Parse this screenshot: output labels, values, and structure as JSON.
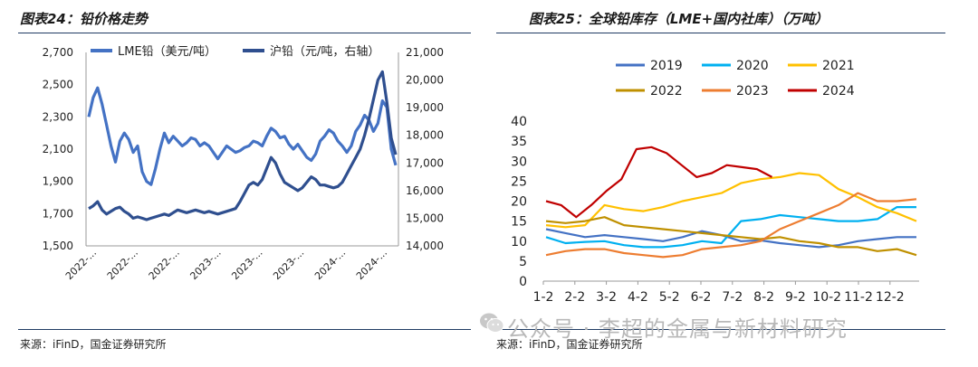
{
  "left_panel": {
    "title": "图表24：铅价格走势",
    "source": "来源：iFinD，国金证券研究所"
  },
  "right_panel": {
    "title": "图表25：全球铅库存（LME+国内社库）（万吨）",
    "source": "来源：iFinD，国金证券研究所"
  },
  "watermark": {
    "text": "公众号 · 李超的金属与新材料研究",
    "icon": "wechat-icon"
  },
  "chart_data": [
    {
      "type": "line",
      "title": "铅价格走势",
      "x_tick_labels": [
        "2022-...",
        "2022-...",
        "2022-...",
        "2023-...",
        "2023-...",
        "2023-...",
        "2024-...",
        "2024-..."
      ],
      "y_left_ticks": [
        "2,700",
        "2,500",
        "2,300",
        "2,100",
        "1,900",
        "1,700",
        "1,500"
      ],
      "y_right_ticks": [
        "21,000",
        "20,000",
        "19,000",
        "18,000",
        "17,000",
        "16,000",
        "15,000",
        "14,000"
      ],
      "ylim_left": [
        1500,
        2700
      ],
      "ylim_right": [
        14000,
        21000
      ],
      "series": [
        {
          "name": "LME铅（美元/吨）",
          "axis": "left",
          "color": "#4472c4",
          "values": [
            2300,
            2420,
            2480,
            2380,
            2250,
            2120,
            2020,
            2150,
            2200,
            2160,
            2080,
            2120,
            1960,
            1900,
            1880,
            1980,
            2100,
            2200,
            2140,
            2180,
            2150,
            2120,
            2140,
            2170,
            2160,
            2120,
            2140,
            2120,
            2080,
            2040,
            2080,
            2120,
            2100,
            2080,
            2090,
            2110,
            2120,
            2150,
            2140,
            2120,
            2180,
            2230,
            2210,
            2170,
            2180,
            2130,
            2100,
            2130,
            2090,
            2050,
            2030,
            2070,
            2150,
            2180,
            2220,
            2200,
            2150,
            2120,
            2080,
            2120,
            2210,
            2250,
            2310,
            2280,
            2210,
            2260,
            2400,
            2360,
            2100,
            2000
          ]
        },
        {
          "name": "沪铅（元/吨，右轴）",
          "axis": "right",
          "color": "#2f4f8f",
          "values": [
            15350,
            15450,
            15600,
            15300,
            15150,
            15250,
            15350,
            15400,
            15250,
            15150,
            15000,
            15050,
            15000,
            14950,
            15000,
            15050,
            15100,
            15150,
            15100,
            15200,
            15300,
            15250,
            15200,
            15250,
            15300,
            15250,
            15200,
            15250,
            15200,
            15150,
            15200,
            15250,
            15300,
            15350,
            15600,
            15900,
            16200,
            16300,
            16200,
            16400,
            16800,
            17200,
            17000,
            16600,
            16300,
            16200,
            16100,
            16000,
            16100,
            16300,
            16500,
            16400,
            16200,
            16200,
            16150,
            16100,
            16150,
            16300,
            16600,
            16900,
            17200,
            17500,
            18000,
            18600,
            19300,
            20000,
            20300,
            19200,
            17900,
            17300
          ]
        }
      ]
    },
    {
      "type": "line",
      "title": "全球铅库存（LME+国内社库）（万吨）",
      "x_tick_labels": [
        "1-2",
        "2-2",
        "3-2",
        "4-2",
        "5-2",
        "6-2",
        "7-2",
        "8-2",
        "9-2",
        "10-2",
        "11-2",
        "12-2"
      ],
      "y_ticks": [
        "40",
        "35",
        "30",
        "25",
        "20",
        "15",
        "10",
        "5",
        "0"
      ],
      "ylim": [
        0,
        40
      ],
      "series": [
        {
          "name": "2019",
          "color": "#4472c4",
          "values": [
            13,
            12,
            11,
            11.5,
            11,
            10.5,
            10,
            11,
            12.5,
            11.5,
            10,
            10.2,
            9.5,
            9,
            8.5,
            9,
            10,
            10.5,
            11,
            11
          ]
        },
        {
          "name": "2020",
          "color": "#00b0f0",
          "values": [
            11,
            9.5,
            9.8,
            10,
            9,
            8.5,
            8.5,
            9,
            10,
            9.5,
            15,
            15.5,
            16.5,
            16,
            15.5,
            15,
            15,
            15.5,
            18.5,
            18.5
          ]
        },
        {
          "name": "2021",
          "color": "#ffc000",
          "values": [
            14,
            13.5,
            14,
            19,
            18,
            17.5,
            18.5,
            20,
            21,
            22,
            24.5,
            25.5,
            26,
            27,
            26.5,
            23,
            21,
            18.5,
            17,
            15
          ]
        },
        {
          "name": "2022",
          "color": "#bf9000",
          "values": [
            15,
            14.5,
            15,
            16,
            14,
            13.5,
            13,
            12.5,
            12,
            11.5,
            11,
            10.5,
            11,
            10,
            9.5,
            8.5,
            8.5,
            7.5,
            8,
            6.5
          ]
        },
        {
          "name": "2023",
          "color": "#ed7d31",
          "values": [
            6.5,
            7.5,
            8,
            8,
            7,
            6.5,
            6,
            6.5,
            8,
            8.5,
            9,
            10,
            13,
            15,
            17,
            19,
            22,
            20,
            20,
            20.5
          ]
        },
        {
          "name": "2024",
          "color": "#c00000",
          "values": [
            20,
            19,
            16,
            19,
            22.5,
            25.5,
            33,
            33.5,
            32,
            29,
            26,
            27,
            29,
            28.5,
            28,
            26
          ]
        }
      ]
    }
  ]
}
